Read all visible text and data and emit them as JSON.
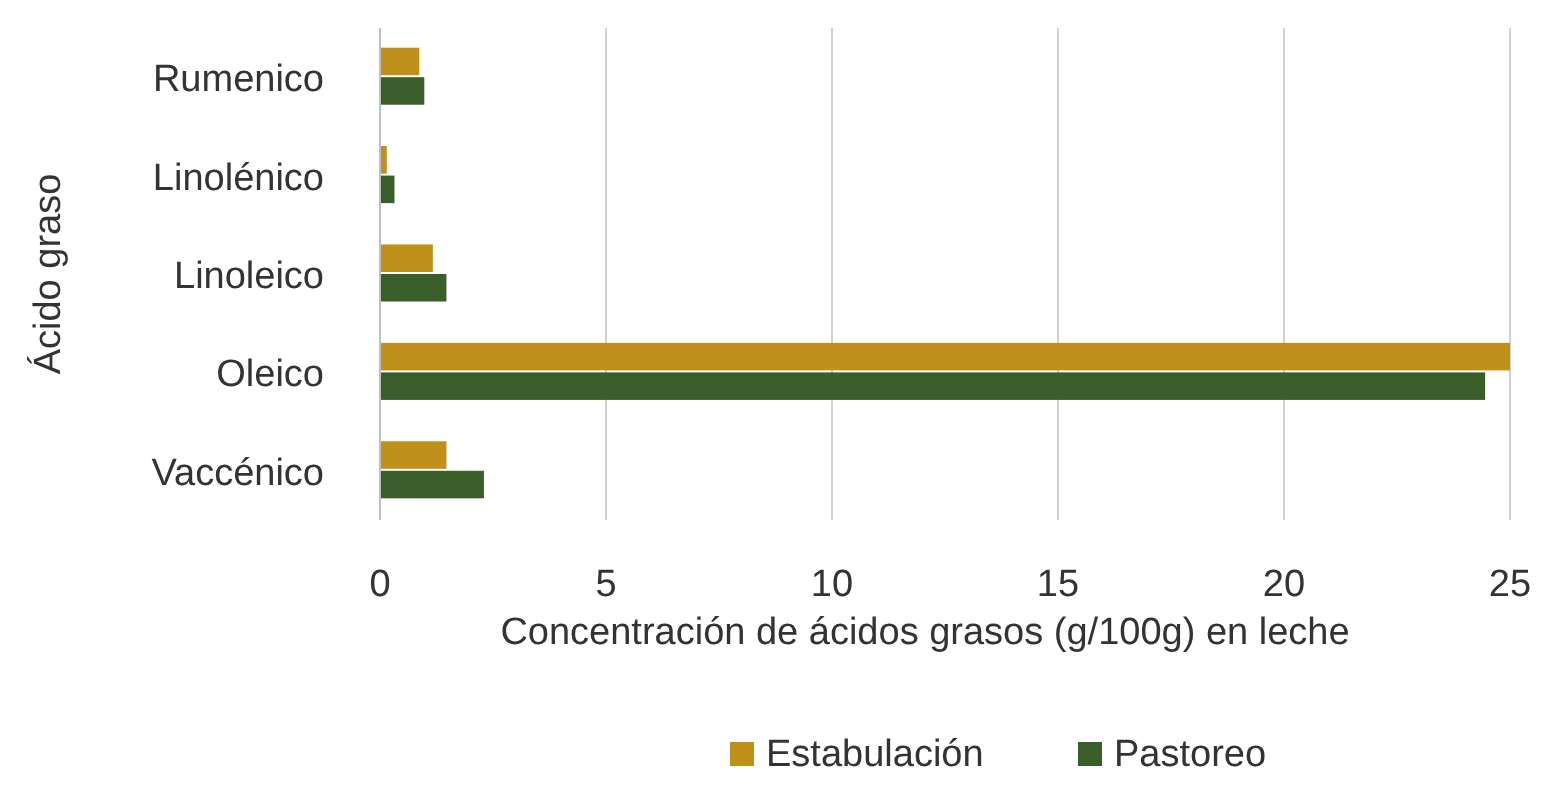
{
  "chart_data": {
    "type": "bar",
    "orientation": "horizontal",
    "xlabel": "Concentración de ácidos grasos (g/100g) en leche",
    "ylabel": "Ácido graso",
    "categories": [
      "Rumenico",
      "Linolénico",
      "Linoleico",
      "Oleico",
      "Vaccénico"
    ],
    "series": [
      {
        "name": "Estabulación",
        "color": "#c0901a",
        "values": [
          0.87,
          0.15,
          1.17,
          25,
          1.47
        ]
      },
      {
        "name": "Pastoreo",
        "color": "#3a5e2a",
        "values": [
          0.98,
          0.32,
          1.47,
          24.45,
          2.3
        ]
      }
    ],
    "xlim": [
      0,
      25
    ],
    "xticks": [
      0,
      5,
      10,
      15,
      20,
      25
    ],
    "grid": "x",
    "legend": "bottom"
  }
}
